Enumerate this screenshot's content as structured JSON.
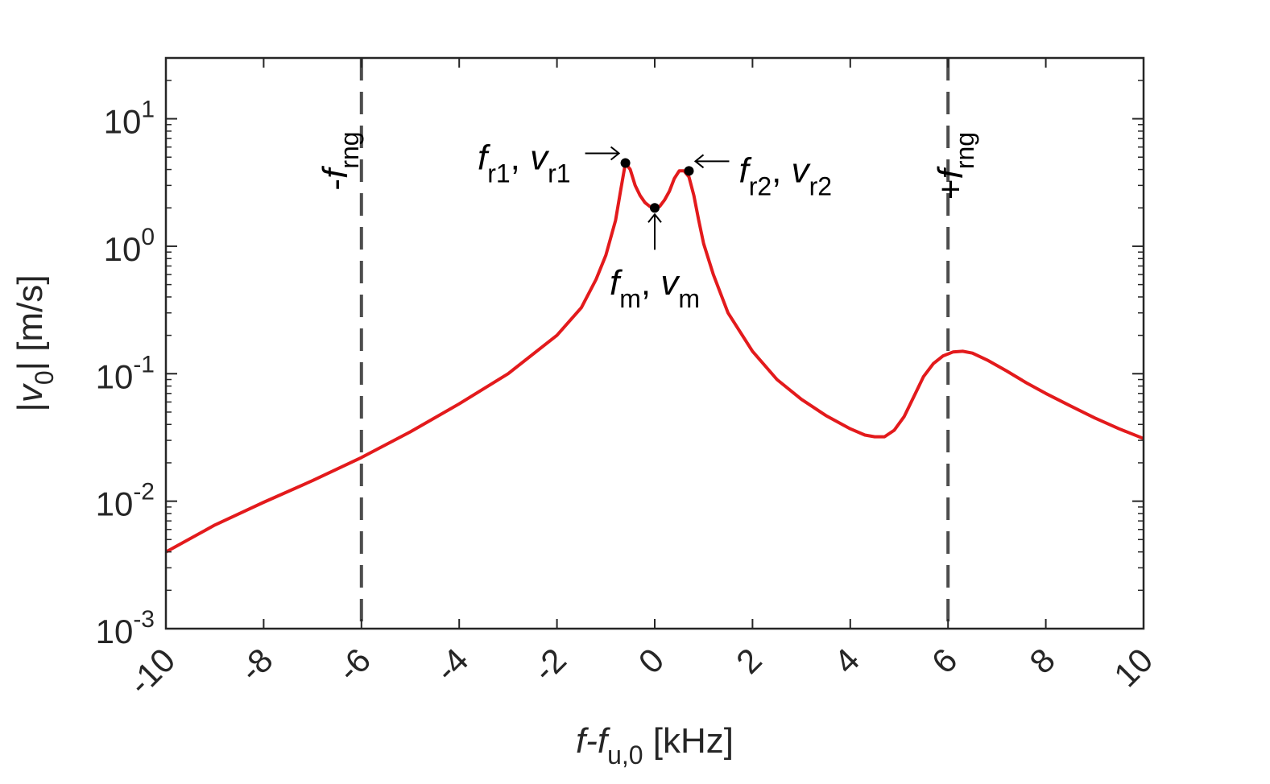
{
  "chart_data": {
    "type": "line",
    "title": "",
    "xlabel": {
      "main": "f-f",
      "sub": "u,0",
      "unit": " [kHz]"
    },
    "ylabel": {
      "pre": "|v",
      "sub": "0",
      "post": "| [m/s]"
    },
    "xlim": [
      -10,
      10
    ],
    "ylim": [
      0.001,
      30
    ],
    "yscale": "log",
    "xticks": [
      -10,
      -8,
      -6,
      -4,
      -2,
      0,
      2,
      4,
      6,
      8,
      10
    ],
    "xtick_labels": [
      "-10",
      "-8",
      "-6",
      "-4",
      "-2",
      "0",
      "2",
      "4",
      "6",
      "8",
      "10"
    ],
    "yticks": [
      0.001,
      0.01,
      0.1,
      1,
      10
    ],
    "ytick_labels": [
      {
        "base": "10",
        "exp": "-3"
      },
      {
        "base": "10",
        "exp": "-2"
      },
      {
        "base": "10",
        "exp": "-1"
      },
      {
        "base": "10",
        "exp": "0"
      },
      {
        "base": "10",
        "exp": "1"
      }
    ],
    "grid": false,
    "series": [
      {
        "color": "#e31a1c",
        "x": [
          -10,
          -9,
          -8,
          -7,
          -6,
          -5,
          -4,
          -3,
          -2,
          -1.5,
          -1.2,
          -1.0,
          -0.8,
          -0.7,
          -0.6,
          -0.5,
          -0.4,
          -0.3,
          -0.2,
          -0.1,
          0,
          0.1,
          0.2,
          0.3,
          0.4,
          0.5,
          0.6,
          0.7,
          0.8,
          0.9,
          1.0,
          1.2,
          1.5,
          2,
          2.5,
          3,
          3.5,
          4,
          4.3,
          4.5,
          4.7,
          4.9,
          5.1,
          5.3,
          5.5,
          5.7,
          5.9,
          6.1,
          6.3,
          6.5,
          6.8,
          7.2,
          7.6,
          8,
          8.5,
          9,
          9.5,
          10
        ],
        "y": [
          0.004,
          0.0065,
          0.0098,
          0.0145,
          0.022,
          0.035,
          0.058,
          0.1,
          0.2,
          0.33,
          0.55,
          0.85,
          1.6,
          2.7,
          4.5,
          4.0,
          3.0,
          2.5,
          2.2,
          2.05,
          2.0,
          2.05,
          2.3,
          2.7,
          3.4,
          3.9,
          3.9,
          3.5,
          2.5,
          1.6,
          1.05,
          0.6,
          0.3,
          0.15,
          0.09,
          0.063,
          0.047,
          0.037,
          0.033,
          0.032,
          0.032,
          0.036,
          0.046,
          0.066,
          0.095,
          0.12,
          0.138,
          0.148,
          0.15,
          0.145,
          0.128,
          0.105,
          0.085,
          0.07,
          0.056,
          0.045,
          0.037,
          0.031
        ]
      }
    ],
    "vlines": [
      {
        "x": -6,
        "label_sign": "-",
        "label_main": "f",
        "label_sub": "rng",
        "color": "#4d4d4d"
      },
      {
        "x": 6,
        "label_sign": "+",
        "label_main": "f",
        "label_sub": "rng",
        "color": "#4d4d4d"
      }
    ],
    "markers": [
      {
        "x": -0.6,
        "y": 4.5,
        "arrow": "right",
        "f_main": "f",
        "f_sub": "r1",
        "v_main": "v",
        "v_sub": "r1"
      },
      {
        "x": 0.0,
        "y": 2.0,
        "arrow": "up",
        "f_main": "f",
        "f_sub": "m",
        "v_main": "v",
        "v_sub": "m"
      },
      {
        "x": 0.7,
        "y": 3.9,
        "arrow": "left",
        "f_main": "f",
        "f_sub": "r2",
        "v_main": "v",
        "v_sub": "r2"
      }
    ]
  }
}
